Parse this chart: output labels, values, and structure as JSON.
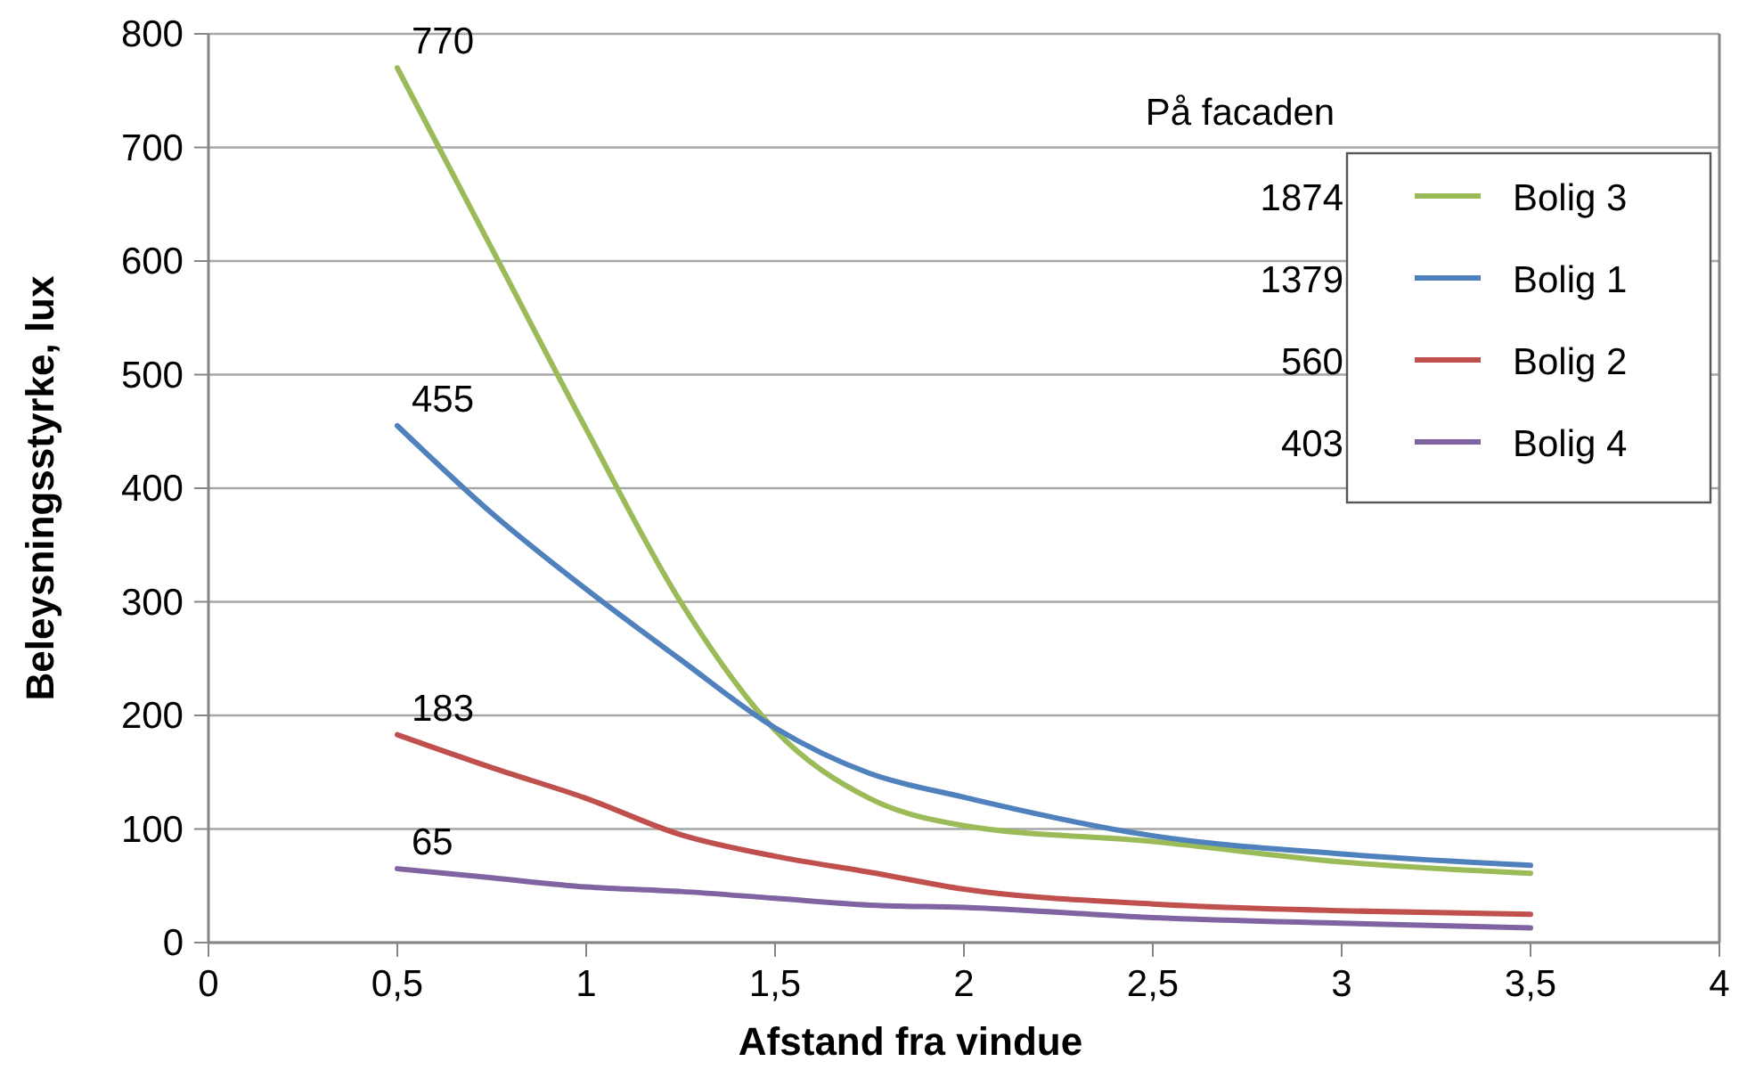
{
  "chart_data": {
    "type": "line",
    "xlabel": "Afstand fra vindue",
    "ylabel": "Beleysningsstyrke, lux",
    "legend_title": "På facaden",
    "legend": "top right",
    "grid": "y",
    "marker": "none",
    "line_style": "solid",
    "x": [
      0.5,
      0.75,
      1,
      1.25,
      1.5,
      1.75,
      2,
      2.5,
      3,
      3.5
    ],
    "xlim": [
      0,
      4
    ],
    "xticks": [
      0,
      {
        "value": 0.5,
        "label": "0,5"
      },
      1,
      {
        "value": 1.5,
        "label": "1,5"
      },
      2,
      {
        "value": 2.5,
        "label": "2,5"
      },
      3,
      {
        "value": 3.5,
        "label": "3,5"
      },
      4
    ],
    "ylim": [
      0,
      800
    ],
    "yticks": [
      0,
      100,
      200,
      300,
      400,
      500,
      600,
      700,
      800
    ],
    "series": [
      {
        "name": "Bolig 3",
        "color": "#9bbb59",
        "values": [
          770,
          611,
          452,
          300,
          187,
          127,
          103,
          89,
          71,
          61
        ],
        "value_labels": [
          "770",
          null,
          null,
          null,
          null,
          null,
          null,
          null,
          null,
          null
        ]
      },
      {
        "name": "Bolig 1",
        "color": "#4f81bd",
        "values": [
          455,
          378,
          311,
          249,
          189,
          149,
          128,
          94,
          78,
          68
        ],
        "value_labels": [
          "455",
          null,
          null,
          null,
          null,
          null,
          null,
          null,
          null,
          null
        ]
      },
      {
        "name": "Bolig 2",
        "color": "#c0504d",
        "values": [
          183,
          154,
          127,
          95,
          76,
          62,
          47,
          34,
          28,
          25
        ],
        "value_labels": [
          "183",
          null,
          null,
          null,
          null,
          null,
          null,
          null,
          null,
          null
        ]
      },
      {
        "name": "Bolig 4",
        "color": "#8064a2",
        "values": [
          65,
          57,
          49,
          45,
          39,
          33,
          31,
          22,
          17,
          13
        ],
        "value_labels": [
          "65",
          null,
          null,
          null,
          null,
          null,
          null,
          null,
          null,
          null
        ]
      }
    ],
    "annotations": [
      "1874",
      "1379",
      "560",
      "403"
    ]
  }
}
